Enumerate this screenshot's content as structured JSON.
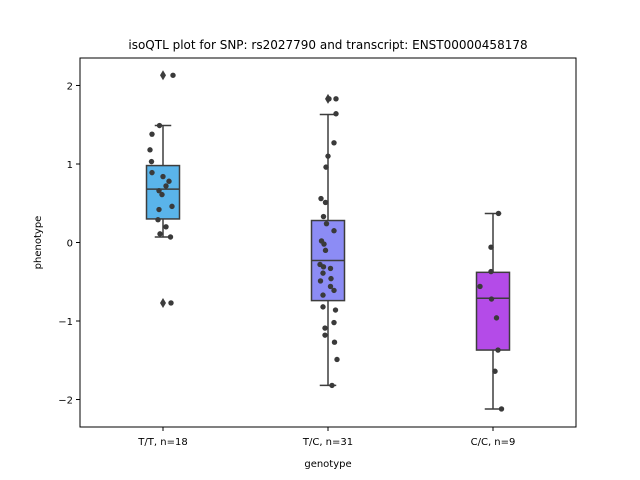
{
  "chart_data": {
    "type": "boxplot",
    "title": "isoQTL plot for SNP: rs2027790 and transcript: ENST00000458178",
    "xlabel": "genotype",
    "ylabel": "phenotype",
    "ylim": [
      -2.35,
      2.35
    ],
    "yticks": [
      {
        "value": 2,
        "label": "2"
      },
      {
        "value": 1,
        "label": "1"
      },
      {
        "value": 0,
        "label": "0"
      },
      {
        "value": -1,
        "label": "−1"
      },
      {
        "value": -2,
        "label": "−2"
      }
    ],
    "categories": [
      "T/T, n=18",
      "T/C, n=31",
      "C/C, n=9"
    ],
    "boxes": [
      {
        "category": "T/T, n=18",
        "color": "#5ab4ea",
        "q1": 0.3,
        "median": 0.68,
        "q3": 0.98,
        "whisker_low": 0.07,
        "whisker_high": 1.49,
        "outliers": [
          2.13,
          -0.77
        ]
      },
      {
        "category": "T/C, n=31",
        "color": "#8c8cf5",
        "q1": -0.74,
        "median": -0.23,
        "q3": 0.28,
        "whisker_low": -1.82,
        "whisker_high": 1.63,
        "outliers": [
          1.83
        ]
      },
      {
        "category": "C/C, n=9",
        "color": "#b44be8",
        "q1": -1.37,
        "median": -0.71,
        "q3": -0.38,
        "whisker_low": -2.12,
        "whisker_high": 0.37,
        "outliers": []
      }
    ],
    "points": [
      {
        "category": "T/T, n=18",
        "jitter": [
          0.2,
          -0.22,
          -0.07,
          -0.26,
          -0.23,
          -0.22,
          0.0,
          0.12,
          0.06,
          -0.08,
          -0.02,
          0.18,
          -0.08,
          -0.1,
          0.06,
          -0.06,
          0.15,
          0.16
        ],
        "values": [
          2.13,
          1.38,
          1.49,
          1.18,
          1.03,
          0.89,
          0.84,
          0.78,
          0.72,
          0.66,
          0.61,
          0.46,
          0.42,
          0.29,
          0.2,
          0.11,
          0.07,
          -0.77
        ]
      },
      {
        "category": "T/C, n=31",
        "jitter": [
          0.16,
          0.02,
          0.16,
          0.12,
          0.0,
          -0.04,
          -0.14,
          -0.05,
          -0.09,
          -0.03,
          0.12,
          -0.13,
          -0.08,
          -0.05,
          -0.16,
          -0.09,
          0.05,
          -0.1,
          0.06,
          -0.15,
          0.05,
          0.12,
          -0.1,
          -0.1,
          0.15,
          0.12,
          -0.06,
          -0.06,
          0.13,
          0.18,
          0.08
        ],
        "values": [
          1.83,
          1.83,
          1.64,
          1.27,
          1.1,
          0.96,
          0.56,
          0.51,
          0.33,
          0.24,
          0.15,
          0.02,
          -0.02,
          -0.1,
          -0.28,
          -0.31,
          -0.33,
          -0.39,
          -0.46,
          -0.49,
          -0.56,
          -0.61,
          -0.67,
          -0.82,
          -0.86,
          -1.02,
          -1.09,
          -1.18,
          -1.27,
          -1.49,
          -1.82
        ]
      },
      {
        "category": "C/C, n=9",
        "jitter": [
          0.11,
          -0.04,
          -0.26,
          -0.04,
          -0.03,
          0.07,
          0.1,
          0.04,
          0.17
        ],
        "values": [
          0.37,
          -0.06,
          -0.56,
          -0.37,
          -0.72,
          -0.96,
          -1.37,
          -1.64,
          -2.12
        ]
      }
    ]
  }
}
